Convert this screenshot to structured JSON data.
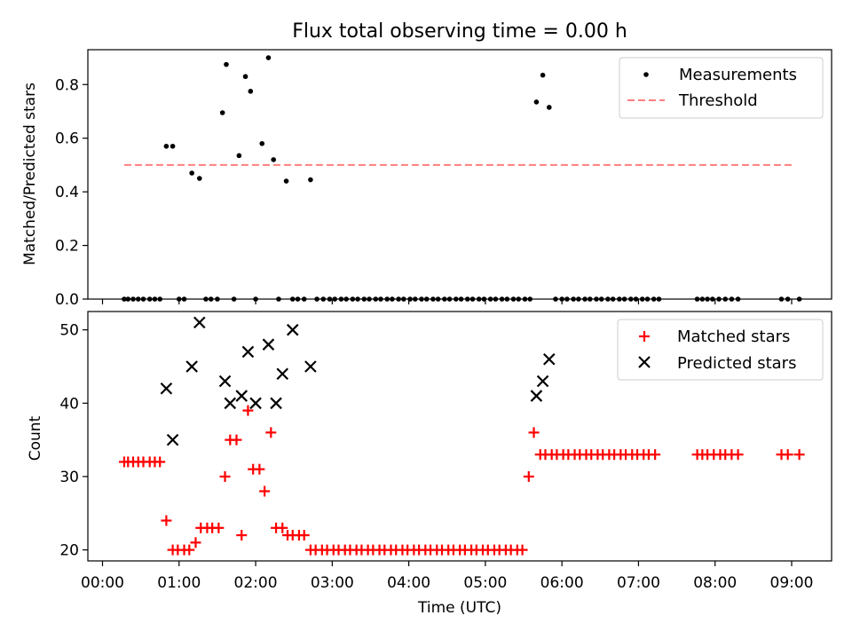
{
  "chart_data": [
    {
      "type": "scatter",
      "title": "Flux total observing time = 0.00 h",
      "xlabel": "",
      "ylabel": "Matched/Predicted stars",
      "ylim": [
        0,
        0.93
      ],
      "yticks": [
        "0.0",
        "0.2",
        "0.4",
        "0.6",
        "0.8"
      ],
      "legend_position": "top-right",
      "series": [
        {
          "name": "Measurements",
          "color": "#000000",
          "marker": "dot",
          "x": [
            "00:17",
            "00:20",
            "00:24",
            "00:28",
            "00:32",
            "00:37",
            "00:41",
            "00:45",
            "00:50",
            "00:55",
            "01:00",
            "01:04",
            "01:10",
            "01:16",
            "01:21",
            "01:25",
            "01:30",
            "01:34",
            "01:37",
            "01:43",
            "01:47",
            "01:52",
            "01:56",
            "02:00",
            "02:05",
            "02:10",
            "02:14",
            "02:18",
            "02:24",
            "02:29",
            "02:33",
            "02:38",
            "02:43",
            "02:48",
            "02:53",
            "02:58",
            "03:02",
            "03:07",
            "03:11",
            "03:16",
            "03:20",
            "03:25",
            "03:29",
            "03:34",
            "03:38",
            "03:43",
            "03:47",
            "03:52",
            "03:56",
            "04:01",
            "04:05",
            "04:10",
            "04:14",
            "04:19",
            "04:23",
            "04:28",
            "04:32",
            "04:37",
            "04:41",
            "04:46",
            "04:50",
            "04:55",
            "04:59",
            "05:04",
            "05:08",
            "05:13",
            "05:17",
            "05:22",
            "05:26",
            "05:31",
            "05:35",
            "05:40",
            "05:45",
            "05:50",
            "05:55",
            "06:00",
            "06:04",
            "06:09",
            "06:13",
            "06:18",
            "06:22",
            "06:27",
            "06:31",
            "06:36",
            "06:40",
            "06:45",
            "06:49",
            "06:54",
            "06:58",
            "07:03",
            "07:07",
            "07:12",
            "07:16",
            "07:46",
            "07:50",
            "07:54",
            "07:58",
            "08:03",
            "08:08",
            "08:13",
            "08:18",
            "08:52",
            "08:57",
            "09:06"
          ],
          "y": [
            0,
            0,
            0,
            0,
            0,
            0,
            0,
            0,
            0.57,
            0.57,
            0,
            0,
            0.47,
            0.45,
            0,
            0,
            0,
            0.695,
            0.875,
            0,
            0.535,
            0.83,
            0.775,
            0,
            0.58,
            0.9,
            0.52,
            0,
            0.44,
            0,
            0,
            0,
            0.445,
            0,
            0,
            0,
            0,
            0,
            0,
            0,
            0,
            0,
            0,
            0,
            0,
            0,
            0,
            0,
            0,
            0,
            0,
            0,
            0,
            0,
            0,
            0,
            0,
            0,
            0,
            0,
            0,
            0,
            0,
            0,
            0,
            0,
            0,
            0,
            0,
            0,
            0,
            0.735,
            0.835,
            0.715,
            0,
            0,
            0,
            0,
            0,
            0,
            0,
            0,
            0,
            0,
            0,
            0,
            0,
            0,
            0,
            0,
            0,
            0,
            0,
            0,
            0,
            0,
            0,
            0,
            0,
            0,
            0,
            0,
            0,
            0
          ]
        },
        {
          "name": "Threshold",
          "color": "#ff7f7f",
          "style": "dashed",
          "x": [
            "00:17",
            "09:02"
          ],
          "y": [
            0.5,
            0.5
          ]
        }
      ]
    },
    {
      "type": "scatter",
      "title": "",
      "xlabel": "Time (UTC)",
      "ylabel": "Count",
      "ylim": [
        18.5,
        52.5
      ],
      "yticks": [
        "20",
        "30",
        "40",
        "50"
      ],
      "xticks": [
        "00:00",
        "01:00",
        "02:00",
        "03:00",
        "04:00",
        "05:00",
        "06:00",
        "07:00",
        "08:00",
        "09:00"
      ],
      "legend_position": "top-right",
      "series": [
        {
          "name": "Matched stars",
          "color": "#ff0000",
          "marker": "plus",
          "x": [
            "00:17",
            "00:20",
            "00:24",
            "00:28",
            "00:32",
            "00:37",
            "00:41",
            "00:45",
            "00:50",
            "00:55",
            "00:59",
            "01:04",
            "01:08",
            "01:13",
            "01:17",
            "01:22",
            "01:26",
            "01:31",
            "01:36",
            "01:40",
            "01:45",
            "01:49",
            "01:54",
            "01:58",
            "02:03",
            "02:07",
            "02:12",
            "02:16",
            "02:21",
            "02:25",
            "02:29",
            "02:34",
            "02:38",
            "02:43",
            "02:47",
            "02:52",
            "02:56",
            "03:01",
            "03:05",
            "03:10",
            "03:14",
            "03:19",
            "03:23",
            "03:28",
            "03:32",
            "03:37",
            "03:41",
            "03:46",
            "03:50",
            "03:55",
            "03:59",
            "04:04",
            "04:08",
            "04:13",
            "04:17",
            "04:22",
            "04:26",
            "04:31",
            "04:35",
            "04:40",
            "04:44",
            "04:49",
            "04:53",
            "04:58",
            "05:02",
            "05:07",
            "05:11",
            "05:16",
            "05:20",
            "05:25",
            "05:29",
            "05:34",
            "05:38",
            "05:43",
            "05:47",
            "05:52",
            "05:56",
            "06:01",
            "06:05",
            "06:10",
            "06:14",
            "06:19",
            "06:23",
            "06:28",
            "06:32",
            "06:37",
            "06:41",
            "06:46",
            "06:50",
            "06:55",
            "06:59",
            "07:04",
            "07:08",
            "07:13",
            "07:46",
            "07:50",
            "07:54",
            "07:59",
            "08:04",
            "08:08",
            "08:13",
            "08:18",
            "08:52",
            "08:57",
            "09:06"
          ],
          "y": [
            32,
            32,
            32,
            32,
            32,
            32,
            32,
            32,
            24,
            20,
            20,
            20,
            20,
            21,
            23,
            23,
            23,
            23,
            30,
            35,
            35,
            22,
            39,
            31,
            31,
            28,
            36,
            23,
            23,
            22,
            22,
            22,
            22,
            20,
            20,
            20,
            20,
            20,
            20,
            20,
            20,
            20,
            20,
            20,
            20,
            20,
            20,
            20,
            20,
            20,
            20,
            20,
            20,
            20,
            20,
            20,
            20,
            20,
            20,
            20,
            20,
            20,
            20,
            20,
            20,
            20,
            20,
            20,
            20,
            20,
            20,
            30,
            36,
            33,
            33,
            33,
            33,
            33,
            33,
            33,
            33,
            33,
            33,
            33,
            33,
            33,
            33,
            33,
            33,
            33,
            33,
            33,
            33,
            33,
            33,
            33,
            33,
            33,
            33,
            33,
            33,
            33,
            33,
            33,
            33
          ]
        },
        {
          "name": "Predicted stars",
          "color": "#000000",
          "marker": "x",
          "x": [
            "00:50",
            "00:55",
            "01:10",
            "01:16",
            "01:36",
            "01:40",
            "01:49",
            "01:54",
            "02:00",
            "02:10",
            "02:16",
            "02:21",
            "02:29",
            "02:43",
            "05:40",
            "05:45",
            "05:50"
          ],
          "y": [
            42,
            35,
            45,
            51,
            43,
            40,
            41,
            47,
            40,
            48,
            40,
            44,
            50,
            45,
            41,
            43,
            46
          ]
        }
      ]
    }
  ]
}
